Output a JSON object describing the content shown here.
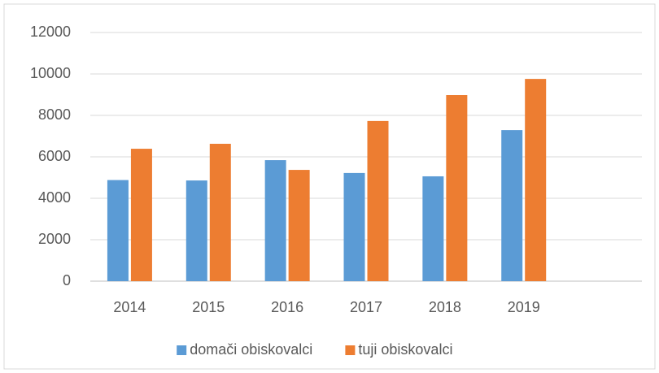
{
  "chart_data": {
    "type": "bar",
    "categories": [
      "2014",
      "2015",
      "2016",
      "2017",
      "2018",
      "2019",
      null
    ],
    "series": [
      {
        "name": "domači obiskovalci",
        "color": "#5b9bd5",
        "values": [
          4880,
          4860,
          5840,
          5220,
          5060,
          7290,
          null
        ]
      },
      {
        "name": "tuji obiskovalci",
        "color": "#ed7d31",
        "values": [
          6390,
          6630,
          5370,
          7730,
          8980,
          9760,
          null
        ]
      }
    ],
    "ylim": [
      0,
      12000
    ],
    "yticks": [
      0,
      2000,
      4000,
      6000,
      8000,
      10000,
      12000
    ],
    "grid": true,
    "legend": "bottom"
  }
}
